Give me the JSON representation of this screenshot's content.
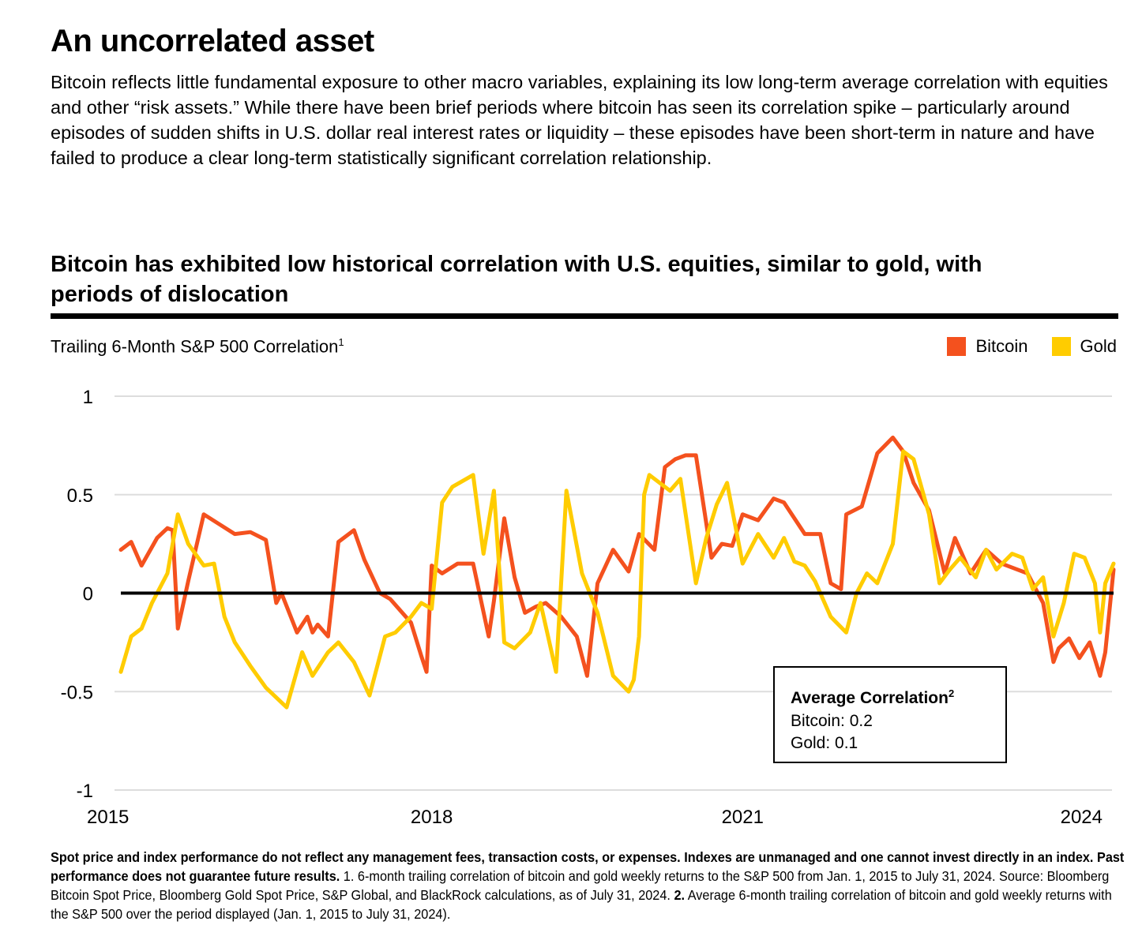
{
  "header": {
    "title": "An uncorrelated asset",
    "intro": "Bitcoin reflects little fundamental exposure to other macro variables, explaining its low long-term average correlation with equities and other “risk assets.” While there have been brief periods where bitcoin has seen its correlation spike – particularly around episodes of sudden shifts in U.S. dollar real interest rates or liquidity – these episodes have been short-term in nature and have failed to produce a clear long-term statistically significant correlation relationship."
  },
  "avg_box": {
    "title": "Average Correlation",
    "title_sup": "2",
    "bitcoin": "Bitcoin: 0.2",
    "gold": "Gold: 0.1"
  },
  "footnote": {
    "bold": "Spot price and index performance do not reflect any management fees, transaction costs, or expenses. Indexes are unmanaged and one cannot invest directly in an index. Past performance does not guarantee future results.",
    "n1_marker": "1.",
    "n1": "6-month trailing correlation of bitcoin and gold weekly returns to the S&P 500 from Jan. 1, 2015 to July 31, 2024. Source: Bloomberg Bitcoin Spot Price, Bloomberg Gold Spot Price, S&P Global, and BlackRock calculations, as of July 31, 2024.",
    "n2_marker": "2.",
    "n2": "Average 6-month trailing correlation of bitcoin and gold weekly returns with the S&P 500 over the period displayed (Jan. 1, 2015 to July 31, 2024)."
  },
  "colors": {
    "bitcoin": "#F4511E",
    "gold": "#FFCC00",
    "grid": "#dddddd",
    "zero": "#000000"
  },
  "chart_data": {
    "type": "line",
    "title": "Bitcoin has exhibited low historical correlation with U.S. equities, similar to gold, with periods of dislocation",
    "ylabel": "Trailing 6-Month S&P 500 Correlation",
    "ylabel_sup": "1",
    "xlabel": "",
    "x_ticks": [
      2015,
      2018,
      2021,
      2024
    ],
    "x_tick_labels": [
      "2015",
      "2018",
      "2021",
      "2024"
    ],
    "xlim": [
      2015.0,
      2024.58
    ],
    "y_ticks": [
      1,
      0.5,
      0,
      -0.5,
      -1
    ],
    "y_tick_labels": [
      "1",
      "0.5",
      "0",
      "-0.5",
      "-1"
    ],
    "ylim": [
      -1,
      1
    ],
    "legend": [
      "Bitcoin",
      "Gold"
    ],
    "legend_position": "top-right",
    "series": [
      {
        "name": "Bitcoin",
        "x": [
          2015.0,
          2015.1,
          2015.2,
          2015.35,
          2015.45,
          2015.5,
          2015.55,
          2015.65,
          2015.8,
          2015.95,
          2016.1,
          2016.25,
          2016.4,
          2016.5,
          2016.55,
          2016.7,
          2016.8,
          2016.85,
          2016.9,
          2017.0,
          2017.1,
          2017.25,
          2017.35,
          2017.5,
          2017.6,
          2017.8,
          2017.9,
          2017.95,
          2018.0,
          2018.1,
          2018.25,
          2018.4,
          2018.55,
          2018.6,
          2018.7,
          2018.8,
          2018.9,
          2019.0,
          2019.1,
          2019.25,
          2019.4,
          2019.5,
          2019.6,
          2019.75,
          2019.9,
          2020.0,
          2020.15,
          2020.25,
          2020.35,
          2020.45,
          2020.55,
          2020.7,
          2020.8,
          2020.9,
          2021.0,
          2021.15,
          2021.3,
          2021.4,
          2021.5,
          2021.6,
          2021.75,
          2021.85,
          2021.95,
          2022.0,
          2022.15,
          2022.3,
          2022.45,
          2022.55,
          2022.65,
          2022.8,
          2022.95,
          2023.05,
          2023.2,
          2023.35,
          2023.5,
          2023.65,
          2023.75,
          2023.9,
          2024.0,
          2024.05,
          2024.15,
          2024.25,
          2024.35,
          2024.45,
          2024.5,
          2024.58
        ],
        "values": [
          0.22,
          0.26,
          0.14,
          0.28,
          0.33,
          0.32,
          -0.18,
          0.06,
          0.4,
          0.35,
          0.3,
          0.31,
          0.27,
          -0.05,
          0.0,
          -0.2,
          -0.12,
          -0.2,
          -0.16,
          -0.22,
          0.26,
          0.32,
          0.17,
          0.0,
          -0.03,
          -0.15,
          -0.32,
          -0.4,
          0.14,
          0.1,
          0.15,
          0.15,
          -0.22,
          -0.04,
          0.38,
          0.08,
          -0.1,
          -0.07,
          -0.05,
          -0.12,
          -0.22,
          -0.42,
          0.05,
          0.22,
          0.11,
          0.3,
          0.22,
          0.64,
          0.68,
          0.7,
          0.7,
          0.18,
          0.25,
          0.24,
          0.4,
          0.37,
          0.48,
          0.46,
          0.38,
          0.3,
          0.3,
          0.05,
          0.02,
          0.4,
          0.44,
          0.71,
          0.79,
          0.72,
          0.56,
          0.42,
          0.1,
          0.28,
          0.1,
          0.22,
          0.15,
          0.12,
          0.1,
          -0.05,
          -0.35,
          -0.28,
          -0.23,
          -0.33,
          -0.25,
          -0.42,
          -0.3,
          0.12
        ]
      },
      {
        "name": "Gold",
        "x": [
          2015.0,
          2015.1,
          2015.2,
          2015.3,
          2015.45,
          2015.55,
          2015.65,
          2015.8,
          2015.9,
          2016.0,
          2016.1,
          2016.25,
          2016.4,
          2016.6,
          2016.75,
          2016.85,
          2017.0,
          2017.1,
          2017.25,
          2017.4,
          2017.55,
          2017.65,
          2017.8,
          2017.9,
          2018.0,
          2018.1,
          2018.2,
          2018.4,
          2018.5,
          2018.6,
          2018.7,
          2018.8,
          2018.95,
          2019.05,
          2019.2,
          2019.3,
          2019.45,
          2019.6,
          2019.75,
          2019.9,
          2019.95,
          2020.0,
          2020.05,
          2020.1,
          2020.2,
          2020.3,
          2020.4,
          2020.55,
          2020.65,
          2020.75,
          2020.85,
          2021.0,
          2021.15,
          2021.3,
          2021.4,
          2021.5,
          2021.6,
          2021.7,
          2021.85,
          2022.0,
          2022.1,
          2022.2,
          2022.3,
          2022.45,
          2022.55,
          2022.65,
          2022.8,
          2022.9,
          2023.0,
          2023.1,
          2023.25,
          2023.35,
          2023.45,
          2023.6,
          2023.7,
          2023.8,
          2023.9,
          2024.0,
          2024.1,
          2024.2,
          2024.3,
          2024.4,
          2024.45,
          2024.5,
          2024.58
        ],
        "values": [
          -0.4,
          -0.22,
          -0.18,
          -0.05,
          0.1,
          0.4,
          0.25,
          0.14,
          0.15,
          -0.12,
          -0.25,
          -0.37,
          -0.48,
          -0.58,
          -0.3,
          -0.42,
          -0.3,
          -0.25,
          -0.35,
          -0.52,
          -0.22,
          -0.2,
          -0.12,
          -0.05,
          -0.08,
          0.46,
          0.54,
          0.6,
          0.2,
          0.52,
          -0.25,
          -0.28,
          -0.2,
          -0.05,
          -0.4,
          0.52,
          0.1,
          -0.1,
          -0.42,
          -0.5,
          -0.44,
          -0.22,
          0.5,
          0.6,
          0.56,
          0.52,
          0.58,
          0.05,
          0.28,
          0.45,
          0.56,
          0.15,
          0.3,
          0.18,
          0.28,
          0.16,
          0.14,
          0.06,
          -0.12,
          -0.2,
          0.0,
          0.1,
          0.05,
          0.25,
          0.72,
          0.68,
          0.4,
          0.05,
          0.12,
          0.18,
          0.08,
          0.22,
          0.12,
          0.2,
          0.18,
          0.02,
          0.08,
          -0.22,
          -0.05,
          0.2,
          0.18,
          0.05,
          -0.2,
          0.05,
          0.15
        ]
      }
    ],
    "reference_line": {
      "y": 0
    }
  }
}
